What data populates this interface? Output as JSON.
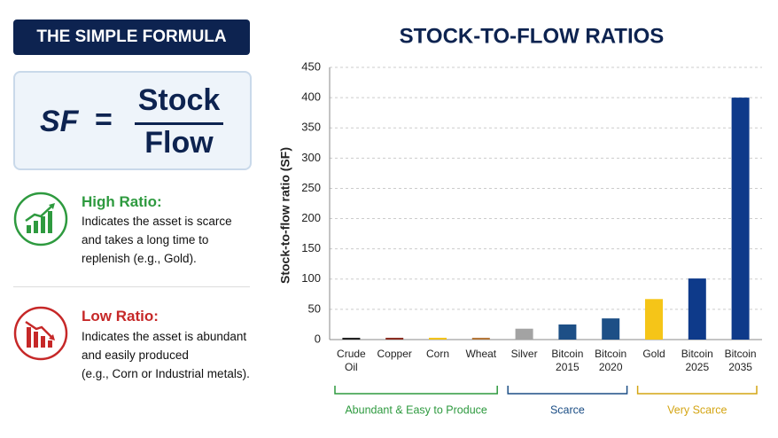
{
  "panel": {
    "header": {
      "title": "THE SIMPLE FORMULA"
    },
    "formula": {
      "lhs": "SF",
      "equals": "=",
      "numerator": "Stock",
      "denominator": "Flow"
    },
    "high_ratio": {
      "title": "High Ratio:",
      "lines": [
        "Indicates the asset is scarce",
        "and takes a long time to",
        "replenish (e.g., Gold)."
      ]
    },
    "low_ratio": {
      "title": "Low Ratio:",
      "lines": [
        "Indicates the asset is abundant",
        "and easily produced",
        "(e.g., Corn or Industrial metals)."
      ]
    }
  },
  "chart_data": {
    "type": "bar",
    "title": "STOCK-TO-FLOW RATIOS",
    "y_label": "Stock-to-flow ratio (SF)",
    "categories": [
      "Crude Oil",
      "Copper",
      "Corn",
      "Wheat",
      "Silver",
      "Bitcoin 2015",
      "Bitcoin 2020",
      "Gold",
      "Bitcoin 2025",
      "Bitcoin 2035"
    ],
    "values": [
      3,
      3,
      3,
      3,
      18,
      25,
      35,
      67,
      101,
      400
    ],
    "colors": [
      "#222222",
      "#8b2e22",
      "#f2c31b",
      "#b5783a",
      "#a3a3a3",
      "#1d4f86",
      "#1d4f86",
      "#f5c518",
      "#0e3a8a",
      "#0e3a8a"
    ],
    "ylim": [
      0,
      450
    ],
    "yticks": [
      0,
      50,
      100,
      150,
      200,
      250,
      300,
      350,
      400,
      450
    ],
    "grid": true,
    "groups": [
      {
        "name": "Abundant & Easy to Produce",
        "color": "#2e9a3f",
        "count": 4
      },
      {
        "name": "Scarce",
        "color": "#1d4f86",
        "count": 3
      },
      {
        "name": "Very Scarce",
        "color": "#d4a514",
        "count": 3
      }
    ]
  }
}
